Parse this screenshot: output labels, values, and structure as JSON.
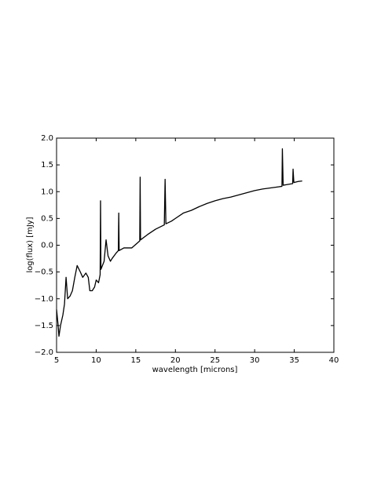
{
  "chart_data": {
    "type": "line",
    "xlabel": "wavelength [microns]",
    "ylabel": "log(flux) [mJy]",
    "x": [
      5.0,
      5.2,
      5.3,
      5.5,
      5.8,
      6.0,
      6.2,
      6.4,
      6.7,
      7.0,
      7.3,
      7.6,
      8.0,
      8.3,
      8.7,
      9.0,
      9.2,
      9.5,
      9.8,
      10.0,
      10.3,
      10.5,
      10.55,
      10.6,
      11.0,
      11.25,
      11.5,
      11.8,
      12.0,
      12.5,
      12.8,
      12.85,
      12.9,
      13.5,
      14.5,
      15.5,
      15.55,
      15.6,
      16.5,
      17.5,
      18.6,
      18.7,
      18.8,
      19.5,
      20,
      21,
      22,
      23,
      24,
      25,
      26,
      27,
      28,
      29,
      30,
      31,
      32,
      33,
      33.45,
      33.5,
      33.6,
      34,
      34.8,
      34.85,
      34.95,
      35.5,
      36
    ],
    "series": [
      {
        "color": "#000000",
        "values": [
          -1.2,
          -1.5,
          -1.7,
          -1.5,
          -1.3,
          -1.1,
          -0.6,
          -1.0,
          -0.95,
          -0.85,
          -0.6,
          -0.38,
          -0.5,
          -0.6,
          -0.52,
          -0.6,
          -0.85,
          -0.85,
          -0.78,
          -0.65,
          -0.7,
          -0.55,
          0.83,
          -0.45,
          -0.3,
          0.1,
          -0.2,
          -0.3,
          -0.25,
          -0.15,
          -0.1,
          0.6,
          -0.1,
          -0.05,
          -0.05,
          0.08,
          1.27,
          0.1,
          0.2,
          0.3,
          0.38,
          1.23,
          0.4,
          0.45,
          0.5,
          0.6,
          0.65,
          0.72,
          0.78,
          0.83,
          0.87,
          0.9,
          0.94,
          0.98,
          1.02,
          1.05,
          1.07,
          1.09,
          1.1,
          1.8,
          1.12,
          1.13,
          1.15,
          1.42,
          1.17,
          1.19,
          1.2
        ]
      }
    ],
    "xlim": [
      5,
      40
    ],
    "xticks": [
      5,
      10,
      15,
      20,
      25,
      30,
      35,
      40
    ],
    "ylim": [
      -2.0,
      2.0
    ],
    "yticks": [
      {
        "value": -2.0,
        "label": "−2.0"
      },
      {
        "value": -1.5,
        "label": "−1.5"
      },
      {
        "value": -1.0,
        "label": "−1.0"
      },
      {
        "value": -0.5,
        "label": "−0.5"
      },
      {
        "value": 0,
        "label": "0.0"
      },
      {
        "value": 0.5,
        "label": "0.5"
      },
      {
        "value": 1.0,
        "label": "1.0"
      },
      {
        "value": 1.5,
        "label": "1.5"
      },
      {
        "value": 2.0,
        "label": "2.0"
      }
    ],
    "grid": false
  }
}
